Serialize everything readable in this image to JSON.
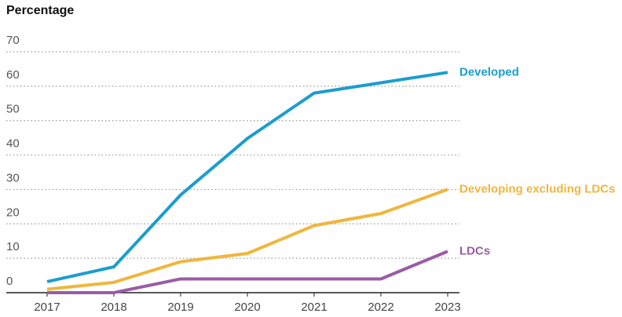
{
  "chart_data": {
    "type": "line",
    "y_label": "Percentage",
    "categories": [
      "2017",
      "2018",
      "2019",
      "2020",
      "2021",
      "2022",
      "2023"
    ],
    "series": [
      {
        "name": "Developed",
        "color": "#1b9dcf",
        "values": [
          3.2,
          7.5,
          28.4,
          44.8,
          58,
          61,
          64
        ]
      },
      {
        "name": "Developing excluding LDCs",
        "color": "#f0b63d",
        "values": [
          1,
          3,
          9,
          11.4,
          19.5,
          23,
          30
        ]
      },
      {
        "name": "LDCs",
        "color": "#9a5ca6",
        "values": [
          0,
          0,
          4,
          4,
          4,
          4,
          12
        ]
      }
    ],
    "ylim": [
      0,
      70
    ],
    "yticks": [
      0,
      10,
      20,
      30,
      40,
      50,
      60,
      70
    ],
    "grid": true
  }
}
